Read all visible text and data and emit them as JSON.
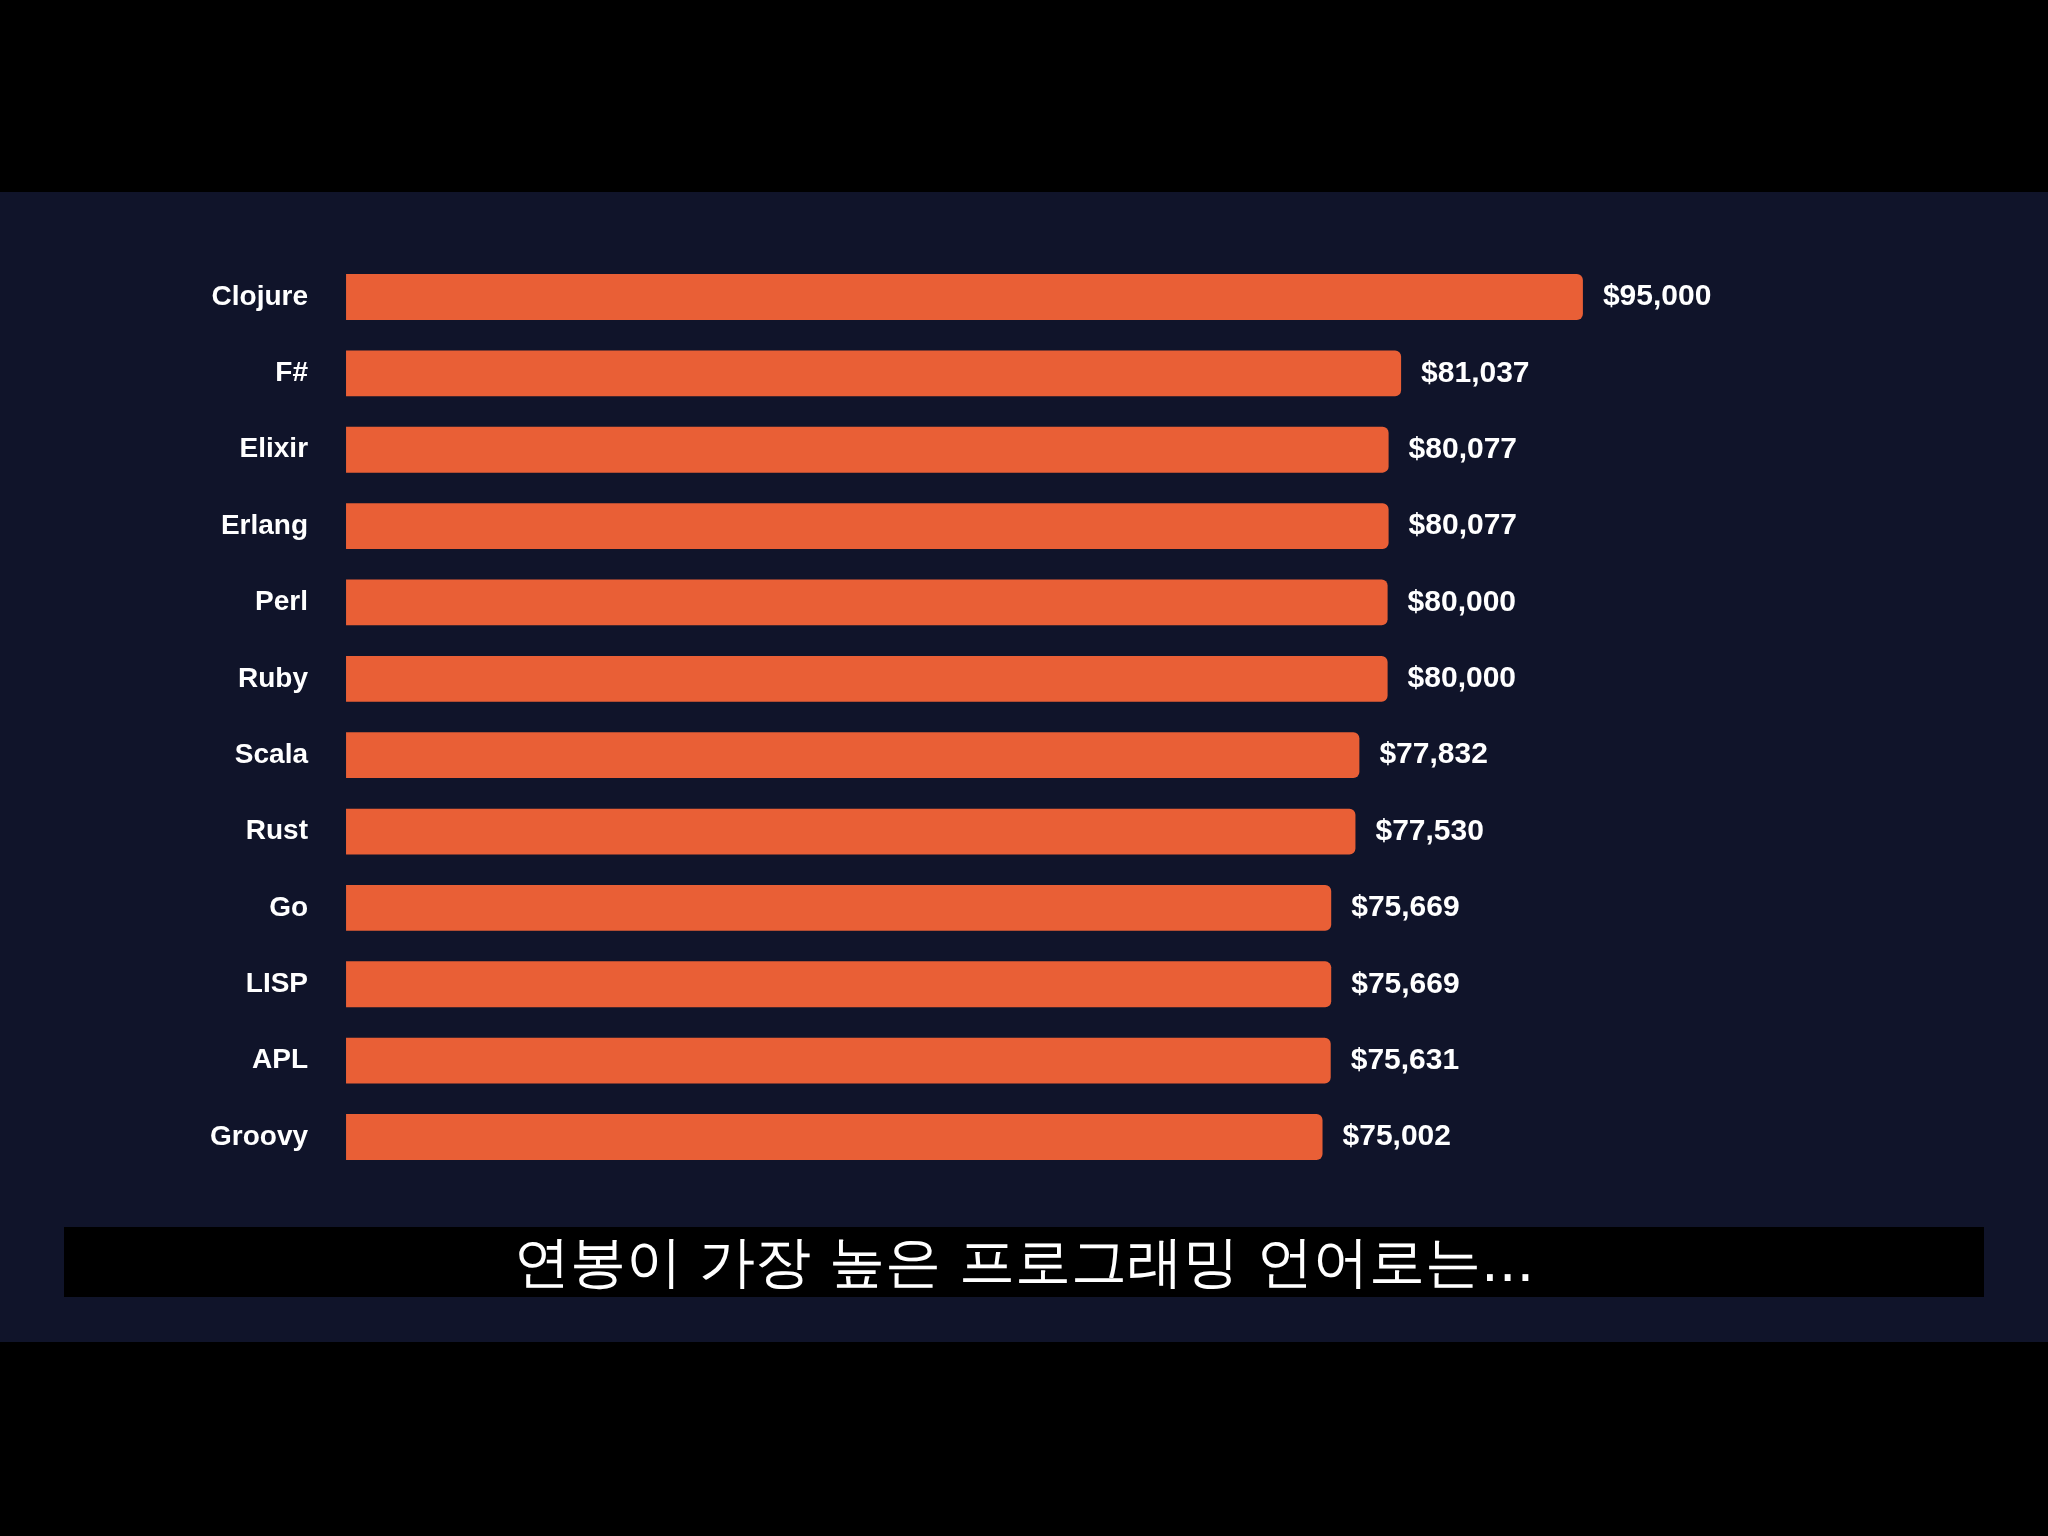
{
  "chart_data": {
    "type": "bar",
    "orientation": "horizontal",
    "subtitle": "연봉이 가장 높은 프로그래밍 언어로는...",
    "categories": [
      "Clojure",
      "F#",
      "Elixir",
      "Erlang",
      "Perl",
      "Ruby",
      "Scala",
      "Rust",
      "Go",
      "LISP",
      "APL",
      "Groovy"
    ],
    "values": [
      95000,
      81037,
      80077,
      80077,
      80000,
      80000,
      77832,
      77530,
      75669,
      75669,
      75631,
      75002
    ],
    "value_labels": [
      "$95,000",
      "$81,037",
      "$80,077",
      "$80,077",
      "$80,000",
      "$80,000",
      "$77,832",
      "$77,530",
      "$75,669",
      "$75,669",
      "$75,631",
      "$75,002"
    ],
    "color": "#e95f36",
    "legend": false
  }
}
